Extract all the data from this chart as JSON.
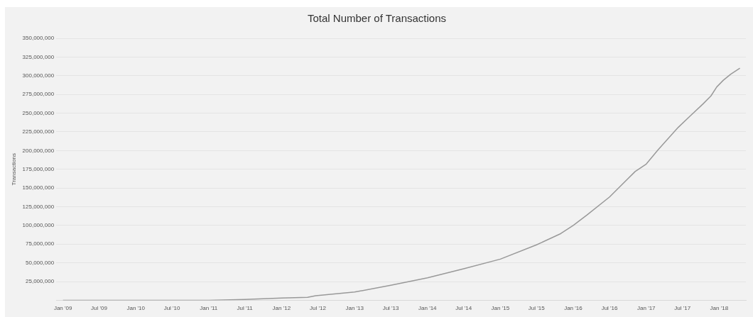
{
  "chart_data": {
    "type": "line",
    "title": "Total Number of Transactions",
    "ylabel": "Transactions",
    "x": [
      "2009-01-01",
      "2010-01-01",
      "2011-01-01",
      "2011-07-01",
      "2012-01-01",
      "2012-05-10",
      "2012-06-20",
      "2013-01-01",
      "2013-05-01",
      "2013-07-01",
      "2014-01-01",
      "2014-07-01",
      "2015-01-01",
      "2015-07-01",
      "2015-10-30",
      "2016-01-01",
      "2016-03-10",
      "2016-07-01",
      "2016-11-06",
      "2017-01-01",
      "2017-03-01",
      "2017-06-10",
      "2017-08-08",
      "2017-10-11",
      "2017-11-21",
      "2017-12-20",
      "2018-01-22",
      "2018-02-28",
      "2018-04-15"
    ],
    "series": [
      {
        "color": "#999999",
        "values": [
          0,
          0,
          0,
          1000000,
          3000000,
          4000000,
          6000000,
          11000000,
          17000000,
          20000000,
          30000000,
          42000000,
          55000000,
          74000000,
          89000000,
          100000000,
          114000000,
          138000000,
          172000000,
          182000000,
          201000000,
          231000000,
          246000000,
          262000000,
          273000000,
          285000000,
          294000000,
          302000000,
          310000000
        ]
      }
    ],
    "xlim": [
      "2008-11-28",
      "2018-05-15"
    ],
    "xticks": [
      {
        "value": "2009-01",
        "label": "Jan '09"
      },
      {
        "value": "2009-07",
        "label": "Jul '09"
      },
      {
        "value": "2010-01",
        "label": "Jan '10"
      },
      {
        "value": "2010-07",
        "label": "Jul '10"
      },
      {
        "value": "2011-01",
        "label": "Jan '11"
      },
      {
        "value": "2011-07",
        "label": "Jul '11"
      },
      {
        "value": "2012-01",
        "label": "Jan '12"
      },
      {
        "value": "2012-07",
        "label": "Jul '12"
      },
      {
        "value": "2013-01",
        "label": "Jan '13"
      },
      {
        "value": "2013-07",
        "label": "Jul '13"
      },
      {
        "value": "2014-01",
        "label": "Jan '14"
      },
      {
        "value": "2014-07",
        "label": "Jul '14"
      },
      {
        "value": "2015-01",
        "label": "Jan '15"
      },
      {
        "value": "2015-07",
        "label": "Jul '15"
      },
      {
        "value": "2016-01",
        "label": "Jan '16"
      },
      {
        "value": "2016-07",
        "label": "Jul '16"
      },
      {
        "value": "2017-01",
        "label": "Jan '17"
      },
      {
        "value": "2017-07",
        "label": "Jul '17"
      },
      {
        "value": "2018-01",
        "label": "Jan '18"
      }
    ],
    "ylim": [
      0,
      350000000
    ],
    "yticks": [
      {
        "value": 0,
        "label": null
      },
      {
        "value": 25000000,
        "label": "25,000,000"
      },
      {
        "value": 50000000,
        "label": "50,000,000"
      },
      {
        "value": 75000000,
        "label": "75,000,000"
      },
      {
        "value": 100000000,
        "label": "100,000,000"
      },
      {
        "value": 125000000,
        "label": "125,000,000"
      },
      {
        "value": 150000000,
        "label": "150,000,000"
      },
      {
        "value": 175000000,
        "label": "175,000,000"
      },
      {
        "value": 200000000,
        "label": "200,000,000"
      },
      {
        "value": 225000000,
        "label": "225,000,000"
      },
      {
        "value": 250000000,
        "label": "250,000,000"
      },
      {
        "value": 275000000,
        "label": "275,000,000"
      },
      {
        "value": 300000000,
        "label": "300,000,000"
      },
      {
        "value": 325000000,
        "label": "325,000,000"
      },
      {
        "value": 350000000,
        "label": "350,000,000"
      }
    ],
    "grid": "y",
    "legend": false,
    "marker": "none",
    "line_style": "solid"
  }
}
